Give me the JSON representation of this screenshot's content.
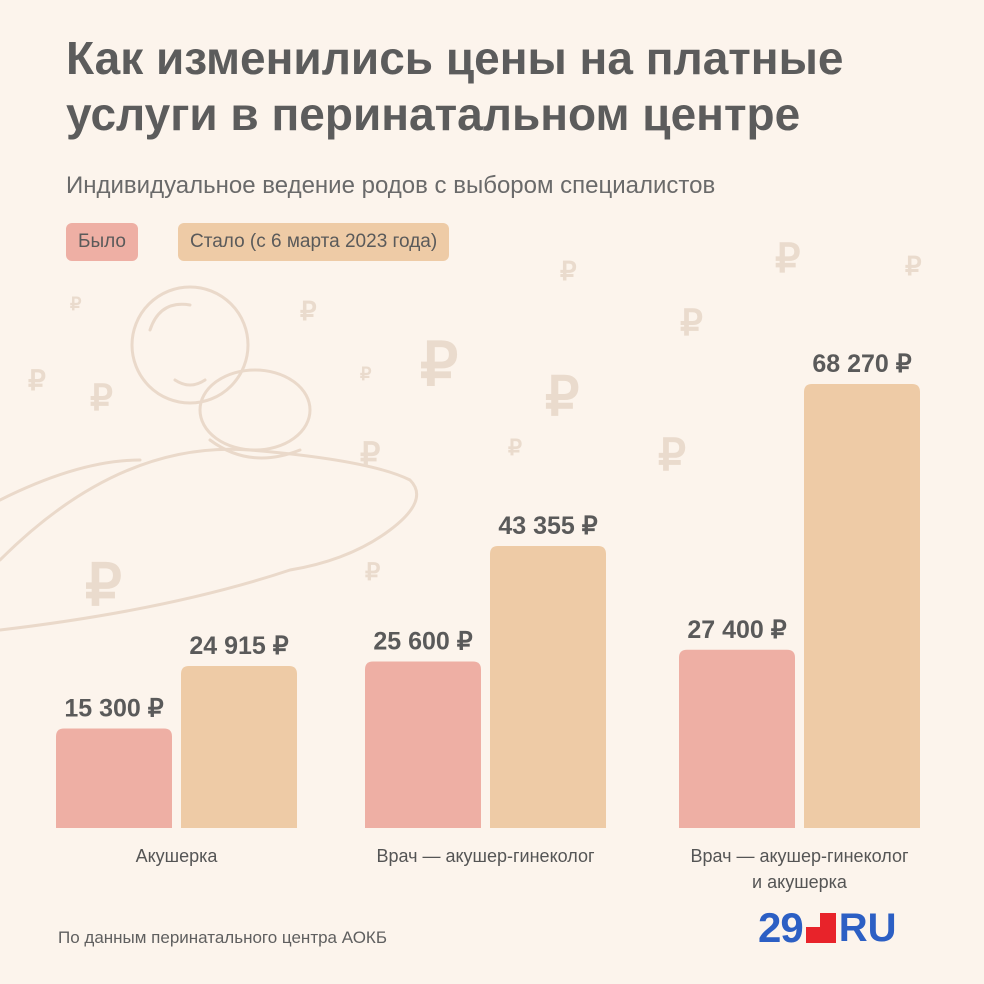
{
  "title": "Как изменились цены на платные\nуслуги в перинатальном центре",
  "subtitle": "Индивидуальное ведение родов с выбором специалистов",
  "legend": {
    "before": "Было",
    "after": "Стало (с 6 марта 2023 года)"
  },
  "colors": {
    "before": "#eeafa4",
    "after": "#eecba6",
    "background": "#fcf4ec",
    "text": "#5b5b5b",
    "brand_blue": "#2c5fc4",
    "brand_red": "#e8232a"
  },
  "source": "По данным перинатального центра АОКБ",
  "brand": {
    "number": "29",
    "suffix": "RU"
  },
  "chart_data": {
    "type": "bar",
    "title": "Как изменились цены на платные услуги в перинатальном центре",
    "subtitle": "Индивидуальное ведение родов с выбором специалистов",
    "categories": [
      "Акушерка",
      "Врач — акушер-гинеколог",
      "Врач — акушер-гинеколог\nи акушерка"
    ],
    "series": [
      {
        "name": "Было",
        "values": [
          15300,
          25600,
          27400
        ],
        "labels": [
          "15 300 ₽",
          "25 600 ₽",
          "27 400 ₽"
        ]
      },
      {
        "name": "Стало (с 6 марта 2023 года)",
        "values": [
          24915,
          43355,
          68270
        ],
        "labels": [
          "24 915 ₽",
          "43 355 ₽",
          "68 270 ₽"
        ]
      }
    ],
    "ylim": [
      0,
      70000
    ],
    "grid": false,
    "legend_position": "top-left"
  }
}
